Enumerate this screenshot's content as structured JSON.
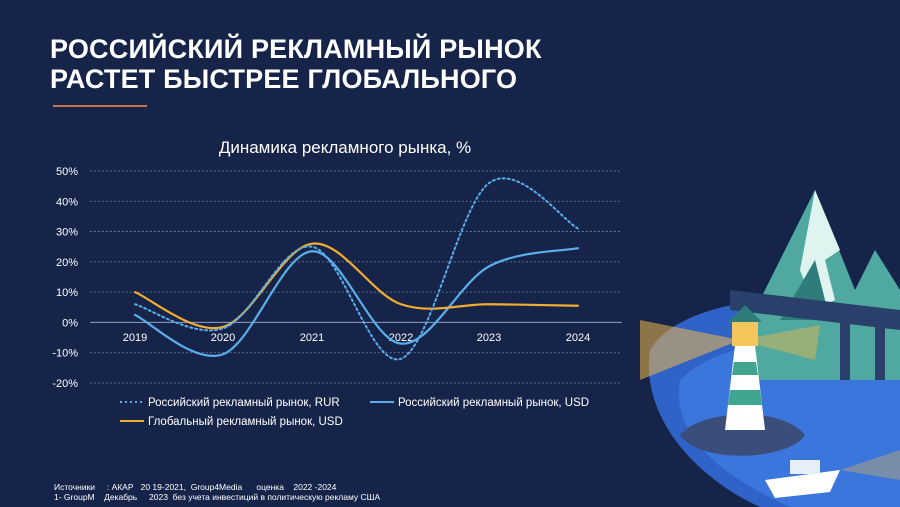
{
  "slide": {
    "title_line1": "РОССИЙСКИЙ РЕКЛАМНЫЙ РЫНОК",
    "title_line2": "РАСТЕТ БЫСТРЕЕ ГЛОБАЛЬНОГО"
  },
  "chart_data": {
    "type": "line",
    "title": "Динамика рекламного рынка, %",
    "categories": [
      "2019",
      "2020",
      "2021",
      "2022",
      "2023",
      "2024"
    ],
    "y_ticks": [
      "50%",
      "40%",
      "30%",
      "20%",
      "10%",
      "0%",
      "-10%",
      "-20%"
    ],
    "ylim": [
      -20,
      50
    ],
    "grid": true,
    "legend_position": "bottom",
    "series": [
      {
        "name": "Российский рекламный рынок, RUR",
        "values": [
          6,
          -2,
          25,
          -12,
          46,
          31
        ],
        "color": "#5aaee8",
        "style": "dotted"
      },
      {
        "name": "Российский рекламный рынок, USD",
        "values": [
          2.5,
          -10.5,
          23.5,
          -7,
          18.5,
          24.5
        ],
        "color": "#5aaee8",
        "style": "solid"
      },
      {
        "name": "Глобальный рекламный рынок, USD",
        "values": [
          10,
          -1.5,
          26,
          6,
          6,
          5.5
        ],
        "color": "#f0ad2e",
        "style": "solid"
      }
    ]
  },
  "footer": {
    "line1": "Источники     : АКАР   20 19-2021,  Group4Media      оценка    2022 -2024",
    "line2": "1- GroupM    Декабрь     2023  без учета инвестиций в политическую рекламу США"
  }
}
